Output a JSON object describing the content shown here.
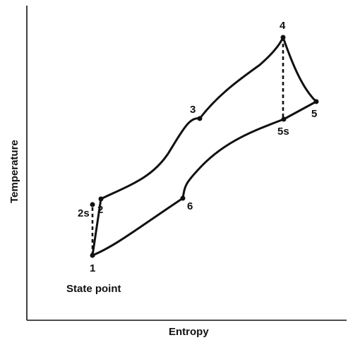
{
  "axes": {
    "xlabel": "Entropy",
    "ylabel": "Temperature"
  },
  "points": {
    "p1": "1",
    "p2": "2",
    "p2s": "2s",
    "p3": "3",
    "p4": "4",
    "p5": "5",
    "p5s": "5s",
    "p6": "6"
  },
  "annotation": "State point",
  "colors": {
    "ink": "#111111",
    "background": "#ffffff"
  }
}
